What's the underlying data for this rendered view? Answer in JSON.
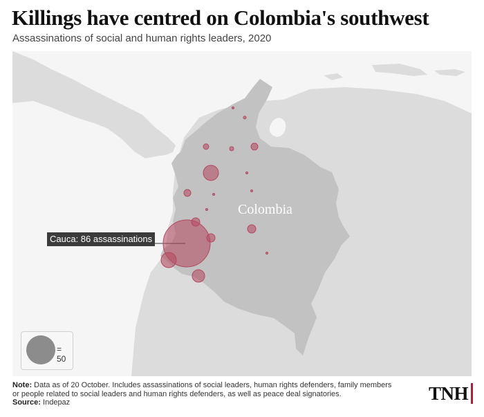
{
  "header": {
    "title": "Killings have centred on Colombia's southwest",
    "subtitle": "Assassinations of social and human rights leaders, 2020"
  },
  "map": {
    "country_label": "Colombia",
    "callout": "Cauca: 86 assassinations",
    "bubble_color": "#b5475f",
    "country_color": "#c2c2c2",
    "neighbour_color": "#dcdcdc",
    "sea_color": "#f5f5f5"
  },
  "legend": {
    "value_label": "= 50"
  },
  "footer": {
    "note_label": "Note:",
    "note_text": "Data as of 20 October. Includes assassinations of social leaders, human rights defenders, family members or people related to social leaders and human rights defenders, as well as peace deal signatories.",
    "source_label": "Source:",
    "source_text": "Indepaz",
    "logo": "TNH"
  }
}
